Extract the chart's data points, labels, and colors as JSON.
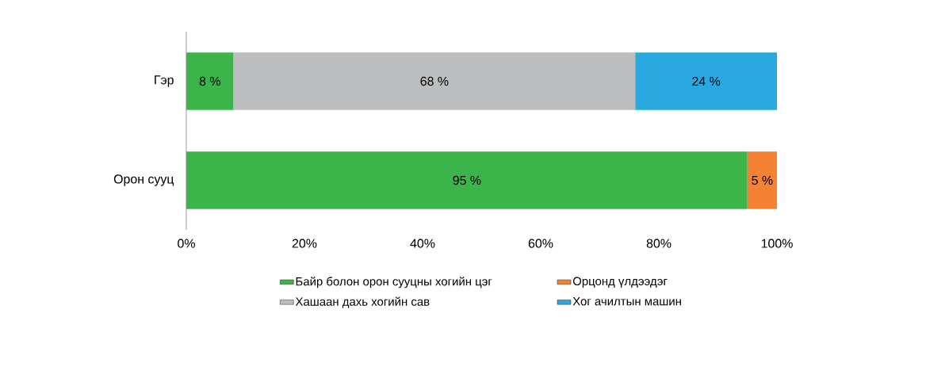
{
  "chart_data": {
    "type": "bar",
    "orientation": "horizontal",
    "stacked": true,
    "categories": [
      "Гэр",
      "Орон сууц"
    ],
    "series": [
      {
        "name": "Байр болон орон сууцны хогийн цэг",
        "color": "#3bb54a",
        "values": [
          8,
          95
        ],
        "value_labels": [
          "8 %",
          "95 %"
        ]
      },
      {
        "name": "Орцонд үлдээдэг",
        "color": "#f58233",
        "values": [
          null,
          5
        ],
        "value_labels": [
          null,
          "5 %"
        ]
      },
      {
        "name": "Хашаан дахь хогийн сав",
        "color": "#bcbec0",
        "values": [
          68,
          null
        ],
        "value_labels": [
          "68 %",
          null
        ]
      },
      {
        "name": "Хог ачилтын машин",
        "color": "#29a9e0",
        "values": [
          24,
          null
        ],
        "value_labels": [
          "24 %",
          null
        ]
      }
    ],
    "xlim": [
      0,
      100
    ],
    "xticks": [
      {
        "value": 0,
        "label": "0%"
      },
      {
        "value": 20,
        "label": "20%"
      },
      {
        "value": 40,
        "label": "40%"
      },
      {
        "value": 60,
        "label": "60%"
      },
      {
        "value": 80,
        "label": "80%"
      },
      {
        "value": 100,
        "label": "100%"
      }
    ],
    "grid": false,
    "legend": "bottom"
  }
}
